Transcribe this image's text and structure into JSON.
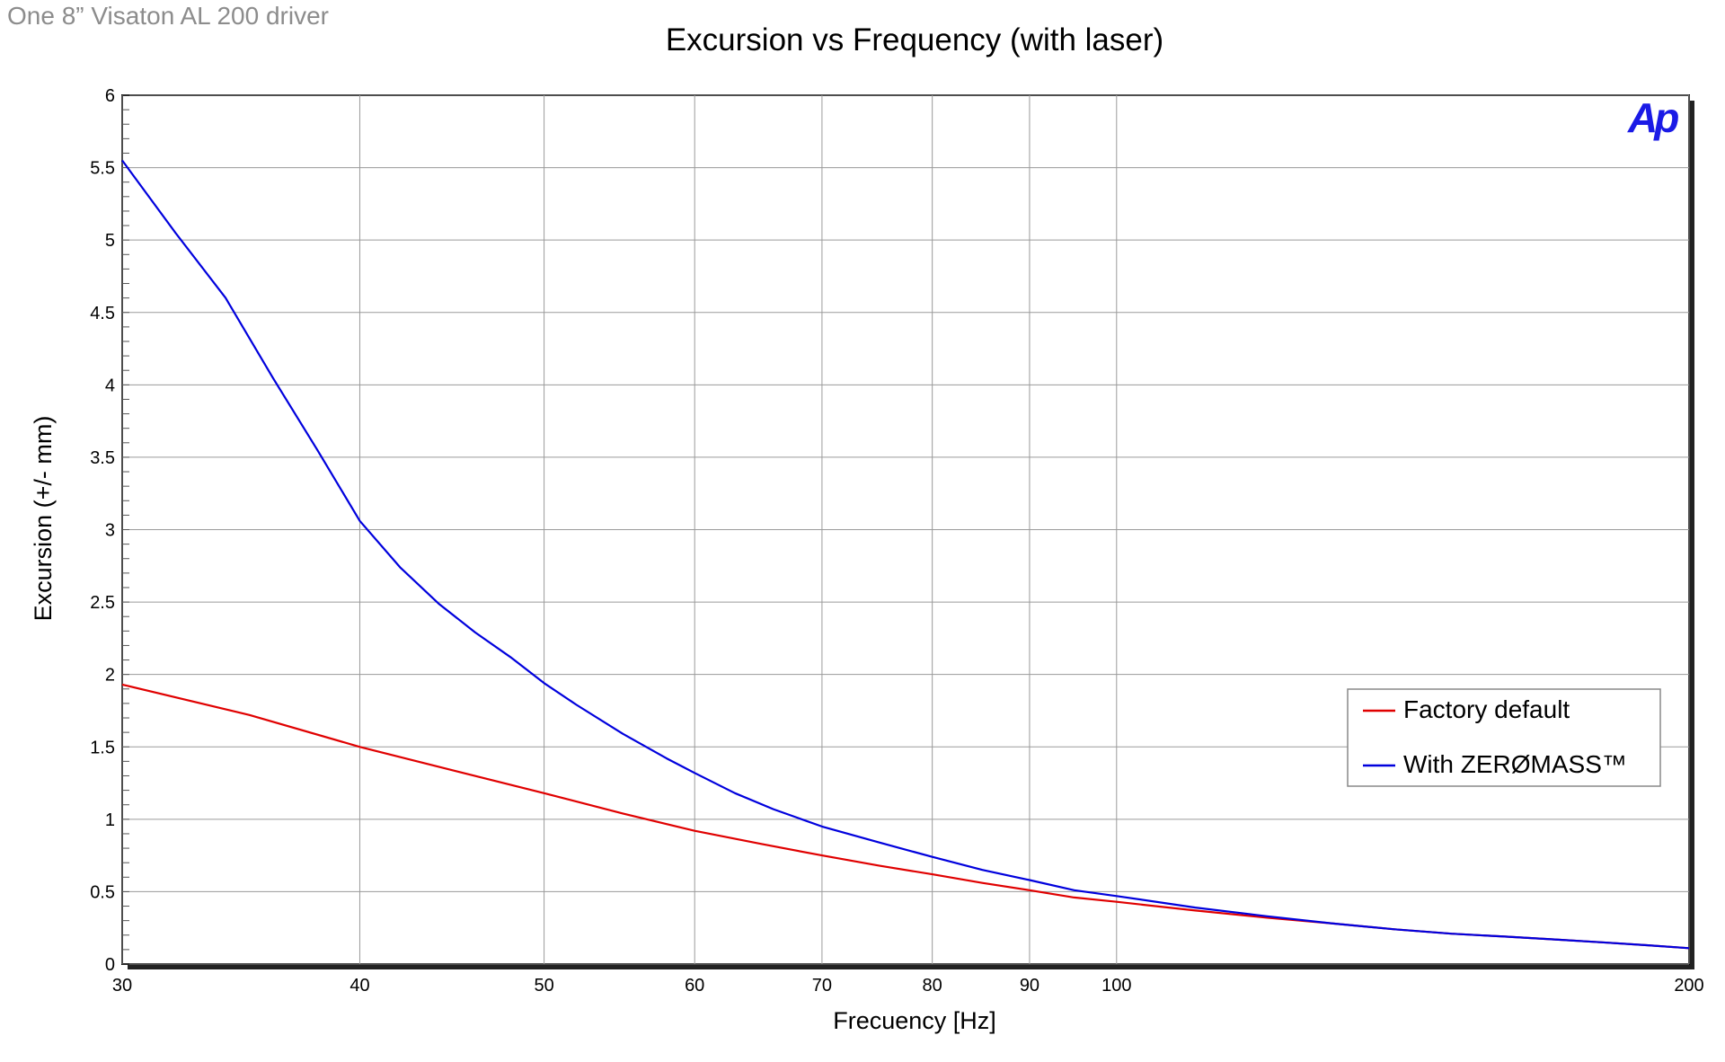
{
  "corner_label": "One 8” Visaton AL 200 driver",
  "logo_text": "Ap",
  "colors": {
    "red": "#e00000",
    "blue": "#0000dd",
    "grid": "#9a9a9a",
    "axis": "#000000",
    "logo": "#1a1ae6"
  },
  "chart_data": {
    "type": "line",
    "title": "Excursion vs Frequency (with laser)",
    "xlabel": "Frecuency [Hz]",
    "ylabel": "Excursion (+/- mm)",
    "xscale": "log",
    "xlim": [
      30,
      200
    ],
    "ylim": [
      0,
      6
    ],
    "x_ticks": [
      30,
      40,
      50,
      60,
      70,
      80,
      90,
      100,
      200
    ],
    "x_tick_labels": [
      "30",
      "40",
      "50",
      "60",
      "70",
      "80",
      "90",
      "100",
      "200"
    ],
    "y_ticks": [
      0,
      0.5,
      1,
      1.5,
      2,
      2.5,
      3,
      3.5,
      4,
      4.5,
      5,
      5.5,
      6
    ],
    "y_tick_labels": [
      "0",
      "0.5",
      "1",
      "1.5",
      "2",
      "2.5",
      "3",
      "3.5",
      "4",
      "4.5",
      "5",
      "5.5",
      "6"
    ],
    "grid": true,
    "legend_position": "right",
    "series": [
      {
        "name": "Factory default",
        "color": "#e00000",
        "x": [
          30,
          35,
          40,
          45,
          50,
          55,
          60,
          65,
          70,
          75,
          80,
          85,
          90,
          95,
          100,
          110,
          120,
          130,
          140,
          150,
          160,
          170,
          180,
          190,
          200
        ],
        "y": [
          1.93,
          1.72,
          1.5,
          1.33,
          1.18,
          1.04,
          0.92,
          0.83,
          0.75,
          0.68,
          0.62,
          0.56,
          0.51,
          0.46,
          0.43,
          0.37,
          0.32,
          0.28,
          0.24,
          0.21,
          0.19,
          0.17,
          0.15,
          0.13,
          0.11
        ]
      },
      {
        "name": "With ZERØMASS™",
        "color": "#0000dd",
        "x": [
          30,
          32,
          34,
          36,
          38,
          40,
          42,
          44,
          46,
          48,
          50,
          52,
          55,
          58,
          60,
          63,
          66,
          70,
          75,
          80,
          85,
          90,
          95,
          100,
          110,
          120,
          130,
          140,
          150,
          160,
          170,
          180,
          190,
          200
        ],
        "y": [
          5.55,
          5.05,
          4.6,
          4.05,
          3.55,
          3.06,
          2.74,
          2.49,
          2.29,
          2.12,
          1.94,
          1.79,
          1.59,
          1.42,
          1.32,
          1.18,
          1.07,
          0.95,
          0.84,
          0.74,
          0.65,
          0.58,
          0.51,
          0.47,
          0.39,
          0.33,
          0.28,
          0.24,
          0.21,
          0.19,
          0.17,
          0.15,
          0.13,
          0.11
        ]
      }
    ]
  }
}
